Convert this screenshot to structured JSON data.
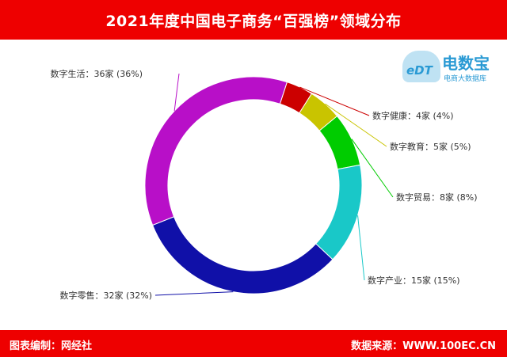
{
  "header": {
    "title": "2021年度中国电子商务“百强榜”领域分布"
  },
  "logo": {
    "badge_text": "eDT",
    "name": "电数宝",
    "subtitle": "电商大数据库"
  },
  "footer": {
    "left": "图表编制：网经社",
    "right": "数据来源：WWW.100EC.CN"
  },
  "chart_data": {
    "type": "pie",
    "donut": true,
    "title": "2021年度中国电子商务“百强榜”领域分布",
    "slices": [
      {
        "name": "数字健康",
        "value": 4,
        "percent": 4,
        "label": "数字健康：4家 (4%)",
        "color": "#cc0000"
      },
      {
        "name": "数字教育",
        "value": 5,
        "percent": 5,
        "label": "数字教育：5家 (5%)",
        "color": "#c9c400"
      },
      {
        "name": "数字贸易",
        "value": 8,
        "percent": 8,
        "label": "数字贸易：8家 (8%)",
        "color": "#00cc00"
      },
      {
        "name": "数字产业",
        "value": 15,
        "percent": 15,
        "label": "数字产业：15家 (15%)",
        "color": "#19c8c8"
      },
      {
        "name": "数字零售",
        "value": 32,
        "percent": 32,
        "label": "数字零售：32家 (32%)",
        "color": "#1010a8"
      },
      {
        "name": "数字生活",
        "value": 36,
        "percent": 36,
        "label": "数字生活：36家 (36%)",
        "color": "#b80fc8"
      }
    ]
  }
}
